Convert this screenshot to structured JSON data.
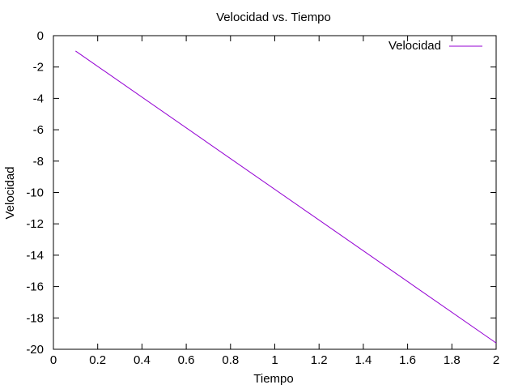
{
  "chart_data": {
    "type": "line",
    "title": "Velocidad vs. Tiempo",
    "xlabel": "Tiempo",
    "ylabel": "Velocidad",
    "xlim": [
      0,
      2
    ],
    "ylim": [
      -20,
      0
    ],
    "xticks": [
      0,
      0.2,
      0.4,
      0.6,
      0.8,
      1,
      1.2,
      1.4,
      1.6,
      1.8,
      2
    ],
    "xtick_labels": [
      "0",
      "0.2",
      "0.4",
      "0.6",
      "0.8",
      "1",
      "1.2",
      "1.4",
      "1.6",
      "1.8",
      "2"
    ],
    "yticks": [
      0,
      -2,
      -4,
      -6,
      -8,
      -10,
      -12,
      -14,
      -16,
      -18,
      -20
    ],
    "ytick_labels": [
      "0",
      "-2",
      "-4",
      "-6",
      "-8",
      "-10",
      "-12",
      "-14",
      "-16",
      "-18",
      "-20"
    ],
    "grid": false,
    "legend_position": "top-right",
    "series": [
      {
        "name": "Velocidad",
        "color": "#9400d3",
        "x": [
          0.1,
          2.0
        ],
        "y": [
          -0.98,
          -19.6
        ]
      }
    ]
  }
}
